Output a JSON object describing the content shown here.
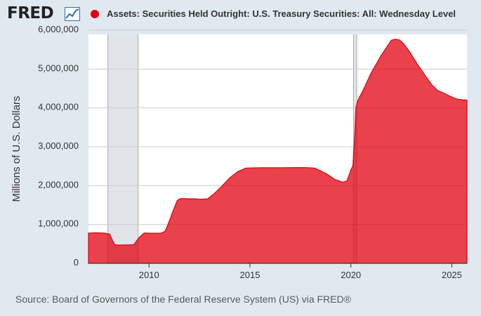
{
  "header": {
    "logo_text": "FRED",
    "logo_icon": "line-chart-icon",
    "series_title": "Assets: Securities Held Outright: U.S. Treasury Securities: All: Wednesday Level",
    "series_color": "#e1000d"
  },
  "chart_data": {
    "type": "area",
    "title": "Assets: Securities Held Outright: U.S. Treasury Securities: All: Wednesday Level",
    "xlabel": "",
    "ylabel": "Millions of U.S. Dollars",
    "xlim": [
      2007.0,
      2025.75
    ],
    "ylim": [
      0,
      6000000
    ],
    "x_ticks": [
      2010,
      2015,
      2020,
      2025
    ],
    "x_tick_labels": [
      "2010",
      "2015",
      "2020",
      "2025"
    ],
    "y_ticks": [
      0,
      1000000,
      2000000,
      3000000,
      4000000,
      5000000,
      6000000
    ],
    "y_tick_labels": [
      "0",
      "1,000,000",
      "2,000,000",
      "3,000,000",
      "4,000,000",
      "5,000,000",
      "6,000,000"
    ],
    "grid": true,
    "fill_color": "#e1000d",
    "recessions": [
      [
        2007.96,
        2009.46
      ],
      [
        2020.13,
        2020.29
      ]
    ],
    "x": [
      2007.0,
      2007.4,
      2007.8,
      2007.98,
      2008.05,
      2008.12,
      2008.22,
      2008.3,
      2008.5,
      2009.0,
      2009.25,
      2009.5,
      2009.75,
      2010.0,
      2010.6,
      2010.8,
      2010.95,
      2011.2,
      2011.4,
      2011.55,
      2011.7,
      2012.0,
      2012.3,
      2012.5,
      2012.9,
      2013.2,
      2013.6,
      2014.0,
      2014.4,
      2014.8,
      2015.0,
      2015.5,
      2016.5,
      2017.5,
      2017.8,
      2018.2,
      2018.5,
      2018.8,
      2019.2,
      2019.6,
      2019.8,
      2019.9,
      2020.0,
      2020.1,
      2020.18,
      2020.25,
      2020.35,
      2020.6,
      2021.0,
      2021.5,
      2022.0,
      2022.2,
      2022.4,
      2022.6,
      2022.9,
      2023.3,
      2023.7,
      2024.0,
      2024.3,
      2024.6,
      2025.0,
      2025.3,
      2025.5,
      2025.75
    ],
    "values": [
      779000,
      786000,
      778000,
      760000,
      750000,
      670000,
      560000,
      480000,
      470000,
      475000,
      480000,
      660000,
      780000,
      777000,
      775000,
      830000,
      1010000,
      1360000,
      1620000,
      1665000,
      1668000,
      1660000,
      1660000,
      1650000,
      1660000,
      1780000,
      1980000,
      2200000,
      2360000,
      2450000,
      2455000,
      2460000,
      2461000,
      2465000,
      2463000,
      2450000,
      2380000,
      2300000,
      2160000,
      2090000,
      2120000,
      2250000,
      2400000,
      2520000,
      3200000,
      4020000,
      4200000,
      4450000,
      4900000,
      5350000,
      5740000,
      5770000,
      5750000,
      5660000,
      5450000,
      5120000,
      4820000,
      4600000,
      4450000,
      4380000,
      4280000,
      4220000,
      4210000,
      4200000
    ]
  },
  "footer": {
    "source": "Source: Board of Governors of the Federal Reserve System (US) via FRED®"
  }
}
